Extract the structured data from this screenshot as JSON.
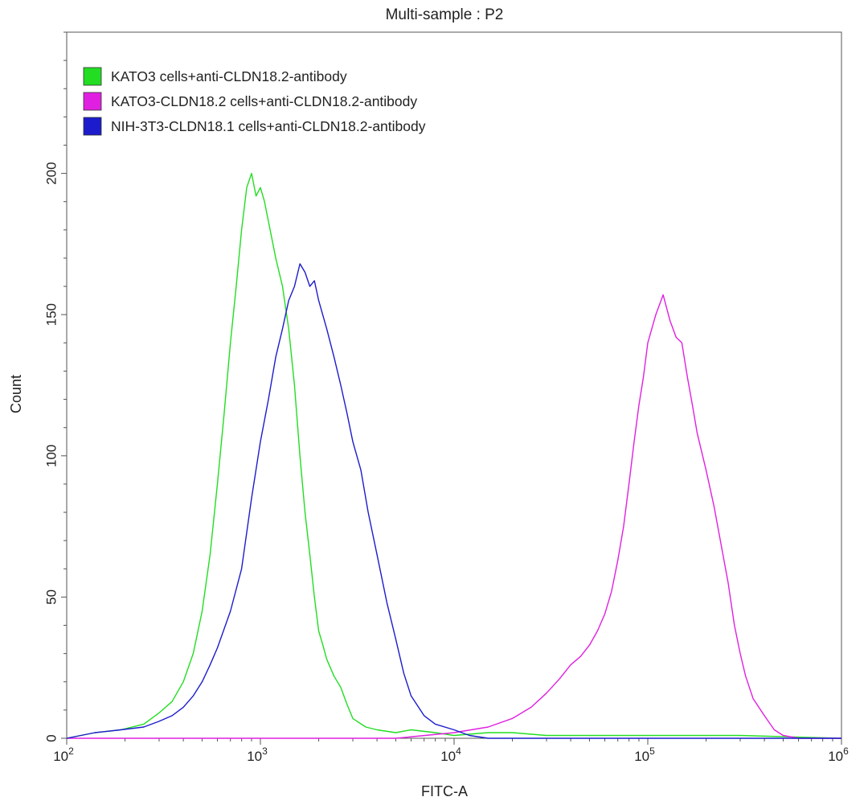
{
  "chart_data": {
    "type": "line",
    "title": "Multi-sample : P2",
    "xlabel": "FITC-A",
    "ylabel": "Count",
    "x_scale": "log",
    "xlim": [
      100,
      1000000
    ],
    "ylim": [
      0,
      250
    ],
    "x_ticks": [
      {
        "value": 100,
        "base": "10",
        "exp": "2"
      },
      {
        "value": 1000,
        "base": "10",
        "exp": "3"
      },
      {
        "value": 10000,
        "base": "10",
        "exp": "4"
      },
      {
        "value": 100000,
        "base": "10",
        "exp": "5"
      },
      {
        "value": 1000000,
        "base": "10",
        "exp": "6"
      }
    ],
    "y_ticks": [
      0,
      50,
      100,
      150,
      200
    ],
    "legend_position": "top-left",
    "grid": false,
    "series": [
      {
        "name": "KATO3 cells+anti-CLDN18.2-antibody",
        "color": "#22dd22",
        "x": [
          100,
          140,
          190,
          250,
          300,
          350,
          400,
          450,
          500,
          550,
          600,
          650,
          700,
          750,
          800,
          850,
          900,
          950,
          1000,
          1050,
          1100,
          1200,
          1300,
          1400,
          1500,
          1600,
          1700,
          1800,
          1900,
          2000,
          2100,
          2200,
          2400,
          2600,
          2800,
          3000,
          3500,
          4000,
          5000,
          6000,
          8000,
          10000,
          15000,
          20000,
          30000,
          50000,
          80000,
          150000,
          300000,
          1000000
        ],
        "y": [
          0,
          2,
          3,
          5,
          9,
          13,
          20,
          30,
          45,
          65,
          90,
          115,
          140,
          160,
          180,
          195,
          200,
          192,
          195,
          190,
          183,
          170,
          160,
          145,
          125,
          100,
          80,
          65,
          50,
          38,
          33,
          28,
          22,
          18,
          12,
          7,
          4,
          3,
          2,
          3,
          2,
          1,
          2,
          2,
          1,
          1,
          1,
          1,
          1,
          0
        ]
      },
      {
        "name": "KATO3-CLDN18.2 cells+anti-CLDN18.2-antibody",
        "color": "#e020e0",
        "x": [
          100,
          1000,
          5000,
          10000,
          15000,
          20000,
          25000,
          30000,
          35000,
          40000,
          45000,
          50000,
          55000,
          60000,
          65000,
          70000,
          75000,
          80000,
          85000,
          90000,
          95000,
          100000,
          110000,
          120000,
          130000,
          140000,
          150000,
          160000,
          170000,
          180000,
          200000,
          220000,
          240000,
          260000,
          280000,
          300000,
          320000,
          350000,
          400000,
          450000,
          500000,
          600000,
          700000,
          1000000
        ],
        "y": [
          0,
          0,
          0,
          2,
          4,
          7,
          11,
          16,
          21,
          26,
          29,
          33,
          38,
          44,
          52,
          63,
          75,
          90,
          105,
          118,
          128,
          140,
          150,
          157,
          148,
          142,
          140,
          128,
          118,
          108,
          95,
          82,
          68,
          55,
          40,
          30,
          22,
          14,
          8,
          3,
          1,
          0,
          0,
          0
        ]
      },
      {
        "name": "NIH-3T3-CLDN18.1 cells+anti-CLDN18.2-antibody",
        "color": "#1c1ccc",
        "x": [
          100,
          140,
          190,
          250,
          300,
          350,
          400,
          450,
          500,
          550,
          600,
          700,
          800,
          900,
          1000,
          1100,
          1200,
          1300,
          1400,
          1500,
          1600,
          1700,
          1800,
          1900,
          2000,
          2200,
          2400,
          2600,
          2800,
          3000,
          3300,
          3600,
          4000,
          4500,
          5000,
          5500,
          6000,
          7000,
          8000,
          10000,
          12000,
          15000,
          20000,
          1000000
        ],
        "y": [
          0,
          2,
          3,
          4,
          6,
          8,
          11,
          15,
          20,
          26,
          32,
          45,
          60,
          85,
          105,
          120,
          135,
          145,
          155,
          160,
          168,
          165,
          160,
          162,
          155,
          145,
          135,
          125,
          115,
          105,
          95,
          80,
          65,
          48,
          35,
          23,
          15,
          8,
          5,
          3,
          1,
          0,
          0,
          0
        ]
      }
    ]
  }
}
